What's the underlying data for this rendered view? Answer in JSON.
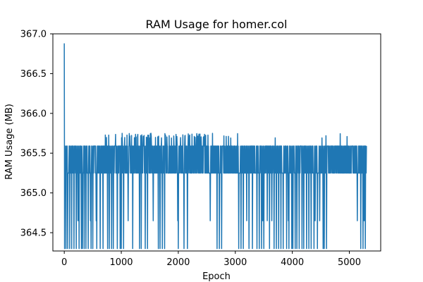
{
  "chart_data": {
    "type": "line",
    "title": "RAM Usage for homer.col",
    "xlabel": "Epoch",
    "ylabel": "RAM Usage (MB)",
    "xlim": [
      -200,
      5550
    ],
    "ylim": [
      364.27,
      367.0
    ],
    "xticks": [
      0,
      1000,
      2000,
      3000,
      4000,
      5000
    ],
    "yticks": [
      364.5,
      365.0,
      365.5,
      366.0,
      366.5,
      367.0
    ],
    "xtick_labels": [
      "0",
      "1000",
      "2000",
      "3000",
      "4000",
      "5000"
    ],
    "ytick_labels": [
      "364.5",
      "365.0",
      "365.5",
      "366.0",
      "366.5",
      "367.0"
    ],
    "grid": false,
    "series": [
      {
        "color": "#1f77b4",
        "summary": {
          "initial_value": 366.88,
          "upper_band": 365.59,
          "lower_band": 365.25,
          "occasional_peak": 365.72,
          "minimum_dips": 364.3,
          "epoch_start": 0,
          "epoch_end": 5300
        },
        "peak_epochs": [
          720,
          740,
          780,
          860,
          900,
          1000,
          1040,
          1100,
          1140,
          1180,
          1230,
          1250,
          1290,
          1340,
          1360,
          1400,
          1440,
          1480,
          1520,
          1560,
          1600,
          1640,
          1680,
          1720,
          1760,
          1800,
          1840,
          1880,
          1920,
          1960,
          2000,
          2040,
          2080,
          2120,
          2160,
          2200,
          2240,
          2280,
          2320,
          2360,
          2400,
          2440,
          2480,
          2520,
          2560,
          2600,
          2680,
          2720,
          2760,
          2800,
          2840,
          2880,
          2920,
          3040,
          3460,
          3700,
          4520,
          4590,
          4840,
          4960
        ],
        "dip_epochs": [
          5,
          30,
          60,
          95,
          130,
          170,
          210,
          260,
          300,
          320,
          350,
          380,
          420,
          470,
          500,
          570,
          630,
          680,
          760,
          790,
          830,
          860,
          930,
          980,
          1000,
          1040,
          1200,
          1320,
          1350,
          1420,
          1460,
          1560,
          1650,
          1680,
          1720,
          1760,
          2000,
          2100,
          2160,
          2680,
          2720,
          2760,
          3060,
          3100,
          3140,
          3200,
          3240,
          3300,
          3380,
          3420,
          3460,
          3500,
          3560,
          3600,
          3640,
          3680,
          3720,
          3760,
          3800,
          3840,
          3900,
          3940,
          3990,
          4010,
          4050,
          4080,
          4120,
          4170,
          4200,
          4250,
          4290,
          4330,
          4380,
          4440,
          4540,
          4560,
          4600,
          5200,
          5240,
          5280
        ],
        "mid_dip_epochs": [
          240,
          460,
          560,
          1120,
          1560,
          1990,
          2560,
          3200,
          3480,
          3560,
          3640,
          3930,
          4400,
          4480,
          5140,
          5260
        ]
      }
    ]
  }
}
